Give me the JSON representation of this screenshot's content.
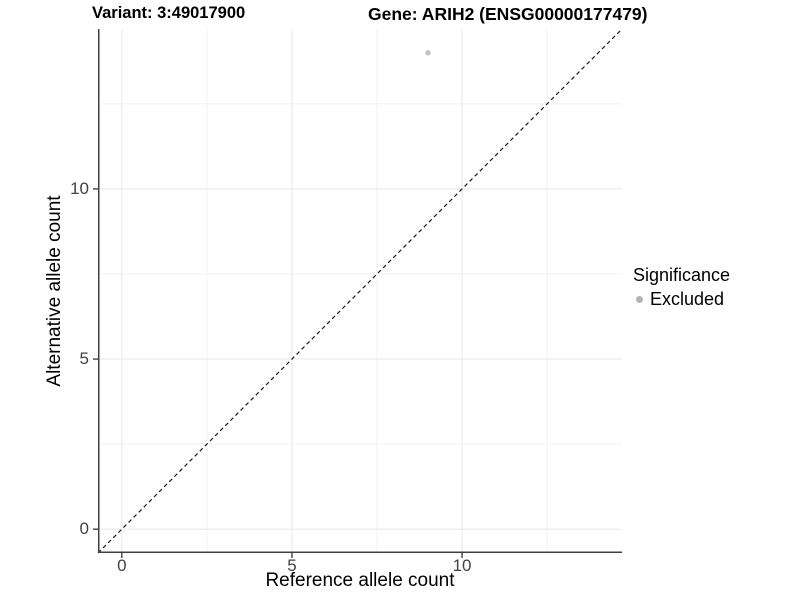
{
  "titles": {
    "variant": "Variant: 3:49017900",
    "gene": "Gene: ARIH2 (ENSG00000177479)"
  },
  "axes": {
    "x_label": "Reference allele count",
    "y_label": "Alternative allele count",
    "x_tick_labels": [
      "0",
      "5",
      "10"
    ],
    "y_tick_labels": [
      "0",
      "5",
      "10"
    ]
  },
  "legend": {
    "title": "Significance",
    "items": [
      {
        "label": "Excluded",
        "color": "#b3b3b3"
      }
    ]
  },
  "chart_data": {
    "type": "scatter",
    "title": "Variant: 3:49017900 / Gene: ARIH2 (ENSG00000177479)",
    "xlabel": "Reference allele count",
    "ylabel": "Alternative allele count",
    "points": [
      {
        "x": 9,
        "y": 14,
        "series": "Excluded"
      }
    ],
    "series": [
      {
        "name": "Excluded",
        "color": "#c1c1c1"
      }
    ],
    "reference_line": {
      "type": "identity",
      "style": "dashed",
      "color": "#1a1a1a"
    },
    "xlim": [
      -0.7,
      14.7
    ],
    "ylim": [
      -0.7,
      14.7
    ],
    "x_major_ticks": [
      0,
      5,
      10
    ],
    "y_major_ticks": [
      0,
      5,
      10
    ],
    "x_minor_gridlines": [
      2.5,
      7.5,
      12.5
    ],
    "y_minor_gridlines": [
      2.5,
      7.5,
      12.5
    ],
    "grid": true,
    "legend_position": "right",
    "colors": {
      "major_grid": "#e7e7e7",
      "minor_grid": "#f2f2f2",
      "axis_line": "#404040",
      "tick_mark": "#333333",
      "point": "#c1c1c1"
    }
  }
}
